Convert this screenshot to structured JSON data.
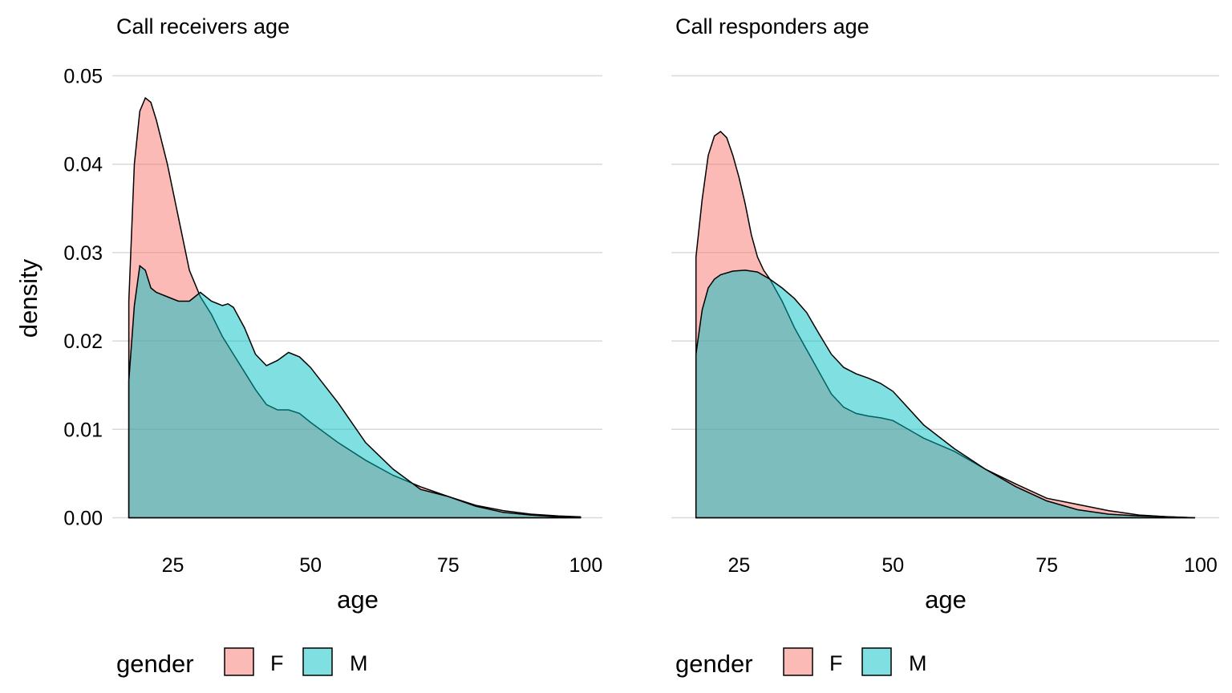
{
  "chart_data": [
    {
      "type": "area",
      "title": "Call receivers age",
      "xlabel": "age",
      "ylabel": "density",
      "xlim": [
        14,
        103
      ],
      "ylim": [
        -0.0025,
        0.0525
      ],
      "xticks": [
        25,
        50,
        75,
        100
      ],
      "yticks": [
        0.0,
        0.01,
        0.02,
        0.03,
        0.04,
        0.05
      ],
      "ytick_labels": [
        "0.00",
        "0.01",
        "0.02",
        "0.03",
        "0.04",
        "0.05"
      ],
      "grid": true,
      "legend": {
        "title": "gender",
        "position": "bottom"
      },
      "series": [
        {
          "name": "F",
          "color": "#F8766D",
          "x": [
            17,
            18,
            19,
            20,
            21,
            22,
            24,
            26,
            28,
            30,
            32,
            34,
            36,
            38,
            40,
            42,
            44,
            46,
            48,
            50,
            55,
            60,
            65,
            70,
            75,
            80,
            85,
            90,
            95,
            99
          ],
          "y": [
            0.0245,
            0.04,
            0.046,
            0.0475,
            0.047,
            0.045,
            0.04,
            0.034,
            0.028,
            0.025,
            0.023,
            0.0205,
            0.0185,
            0.0165,
            0.0145,
            0.0128,
            0.0122,
            0.0122,
            0.0118,
            0.0108,
            0.0085,
            0.0065,
            0.0048,
            0.0035,
            0.0024,
            0.0014,
            0.0008,
            0.0004,
            0.0002,
            0.0001
          ]
        },
        {
          "name": "M",
          "color": "#00BFC4",
          "x": [
            17,
            18,
            19,
            20,
            21,
            22,
            24,
            26,
            28,
            30,
            32,
            34,
            35,
            36,
            38,
            40,
            42,
            44,
            46,
            48,
            50,
            55,
            60,
            65,
            70,
            75,
            80,
            85,
            90,
            95,
            99
          ],
          "y": [
            0.0155,
            0.024,
            0.0285,
            0.028,
            0.026,
            0.0255,
            0.025,
            0.0245,
            0.0245,
            0.0255,
            0.0245,
            0.024,
            0.0242,
            0.0238,
            0.0215,
            0.0185,
            0.0172,
            0.0178,
            0.0187,
            0.0182,
            0.017,
            0.013,
            0.0085,
            0.0055,
            0.0032,
            0.0024,
            0.0013,
            0.0006,
            0.0003,
            0.0001,
            0.0
          ]
        }
      ]
    },
    {
      "type": "area",
      "title": "Call responders age",
      "xlabel": "age",
      "ylabel": "",
      "xlim": [
        14,
        103
      ],
      "ylim": [
        -0.0025,
        0.0525
      ],
      "xticks": [
        25,
        50,
        75,
        100
      ],
      "yticks": [
        0.0,
        0.01,
        0.02,
        0.03,
        0.04,
        0.05
      ],
      "grid": true,
      "legend": {
        "title": "gender",
        "position": "bottom"
      },
      "series": [
        {
          "name": "F",
          "color": "#F8766D",
          "x": [
            18,
            19,
            20,
            21,
            22,
            23,
            24,
            25,
            26,
            27,
            28,
            29,
            30,
            32,
            34,
            36,
            38,
            40,
            42,
            44,
            46,
            48,
            50,
            55,
            60,
            65,
            70,
            75,
            80,
            85,
            90,
            95,
            99
          ],
          "y": [
            0.0295,
            0.036,
            0.041,
            0.0432,
            0.0437,
            0.043,
            0.041,
            0.0385,
            0.0355,
            0.032,
            0.0295,
            0.028,
            0.027,
            0.0245,
            0.0215,
            0.019,
            0.0165,
            0.014,
            0.0125,
            0.0118,
            0.0115,
            0.0113,
            0.011,
            0.009,
            0.0075,
            0.0055,
            0.0038,
            0.0022,
            0.0015,
            0.0008,
            0.0003,
            0.0001,
            0.0
          ]
        },
        {
          "name": "M",
          "color": "#00BFC4",
          "x": [
            18,
            19,
            20,
            21,
            22,
            24,
            26,
            28,
            30,
            32,
            34,
            36,
            38,
            40,
            42,
            44,
            46,
            48,
            50,
            55,
            60,
            65,
            70,
            75,
            80,
            85,
            90,
            95,
            99
          ],
          "y": [
            0.0185,
            0.0235,
            0.026,
            0.027,
            0.0275,
            0.0279,
            0.028,
            0.0278,
            0.027,
            0.026,
            0.0248,
            0.0232,
            0.0208,
            0.0185,
            0.017,
            0.0163,
            0.0158,
            0.0152,
            0.0143,
            0.0105,
            0.0078,
            0.0055,
            0.0035,
            0.0019,
            0.0009,
            0.0004,
            0.0002,
            0.0001,
            0.0
          ]
        }
      ]
    }
  ]
}
